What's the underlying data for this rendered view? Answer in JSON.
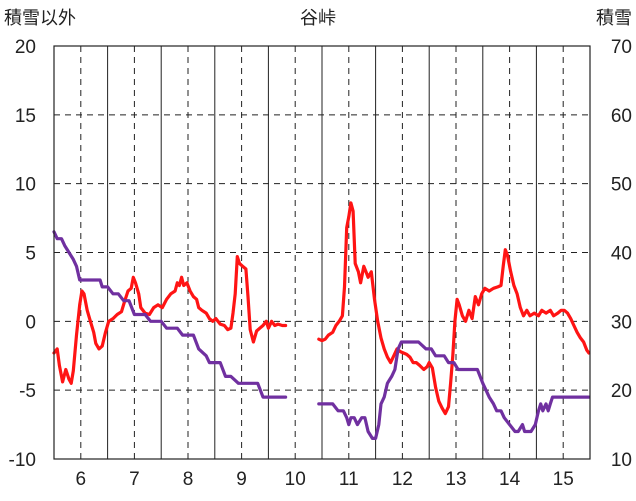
{
  "chart_data": {
    "type": "line",
    "title": "谷峠",
    "ylabel_left": "積雪以外",
    "ylabel_right": "積雪",
    "ylim_left": [
      -10,
      20
    ],
    "ylim_right": [
      10,
      70
    ],
    "yticks_left": [
      "20",
      "15",
      "10",
      "5",
      "0",
      "-5",
      "-10"
    ],
    "yticks_right": [
      "70",
      "60",
      "50",
      "40",
      "30",
      "20",
      "10"
    ],
    "xlim": [
      5.5,
      15.5
    ],
    "xticks": [
      "6",
      "7",
      "8",
      "9",
      "10",
      "11",
      "12",
      "13",
      "14",
      "15"
    ],
    "grid": true,
    "colors": {
      "series_left": "#ff1414",
      "series_right": "#7030a0",
      "grid": "#222222"
    },
    "series": [
      {
        "axis": "left",
        "segments": [
          [
            [
              5.5,
              -2.3
            ],
            [
              5.56,
              -2.0
            ],
            [
              5.6,
              -3.2
            ],
            [
              5.66,
              -4.4
            ],
            [
              5.72,
              -3.5
            ],
            [
              5.78,
              -4.2
            ],
            [
              5.82,
              -4.5
            ],
            [
              5.86,
              -3.6
            ],
            [
              5.92,
              -1.0
            ],
            [
              5.98,
              1.2
            ],
            [
              6.02,
              2.2
            ],
            [
              6.06,
              2.0
            ],
            [
              6.12,
              0.8
            ],
            [
              6.18,
              0.0
            ],
            [
              6.24,
              -0.8
            ],
            [
              6.28,
              -1.6
            ],
            [
              6.34,
              -2.0
            ],
            [
              6.4,
              -1.8
            ],
            [
              6.46,
              -0.8
            ],
            [
              6.52,
              0.0
            ],
            [
              6.6,
              0.2
            ],
            [
              6.68,
              0.5
            ],
            [
              6.76,
              0.7
            ],
            [
              6.82,
              1.5
            ],
            [
              6.88,
              2.2
            ],
            [
              6.94,
              2.4
            ],
            [
              6.98,
              3.2
            ],
            [
              7.02,
              2.8
            ],
            [
              7.08,
              2.0
            ],
            [
              7.12,
              1.0
            ],
            [
              7.2,
              0.6
            ],
            [
              7.28,
              0.5
            ],
            [
              7.36,
              1.0
            ],
            [
              7.44,
              1.2
            ],
            [
              7.52,
              1.0
            ],
            [
              7.6,
              1.6
            ],
            [
              7.68,
              2.0
            ],
            [
              7.76,
              2.2
            ],
            [
              7.8,
              2.8
            ],
            [
              7.84,
              2.6
            ],
            [
              7.88,
              3.2
            ],
            [
              7.92,
              2.6
            ],
            [
              7.98,
              2.8
            ],
            [
              8.04,
              2.2
            ],
            [
              8.1,
              1.8
            ],
            [
              8.16,
              1.6
            ],
            [
              8.2,
              1.0
            ],
            [
              8.26,
              0.8
            ],
            [
              8.34,
              0.6
            ],
            [
              8.4,
              0.2
            ],
            [
              8.46,
              0.0
            ],
            [
              8.52,
              0.2
            ],
            [
              8.6,
              -0.2
            ],
            [
              8.68,
              -0.3
            ],
            [
              8.74,
              -0.6
            ],
            [
              8.8,
              -0.5
            ],
            [
              8.84,
              0.6
            ],
            [
              8.88,
              2.0
            ],
            [
              8.92,
              4.7
            ],
            [
              8.96,
              4.2
            ],
            [
              9.02,
              4.0
            ],
            [
              9.08,
              3.8
            ],
            [
              9.12,
              1.8
            ],
            [
              9.16,
              -0.6
            ],
            [
              9.22,
              -1.5
            ],
            [
              9.28,
              -0.7
            ],
            [
              9.34,
              -0.5
            ],
            [
              9.4,
              -0.3
            ],
            [
              9.46,
              0.0
            ],
            [
              9.5,
              -0.5
            ],
            [
              9.56,
              0.0
            ],
            [
              9.62,
              -0.3
            ],
            [
              9.68,
              -0.2
            ],
            [
              9.76,
              -0.3
            ],
            [
              9.82,
              -0.3
            ]
          ],
          [
            [
              10.44,
              -1.3
            ],
            [
              10.5,
              -1.4
            ],
            [
              10.56,
              -1.3
            ],
            [
              10.62,
              -1.0
            ],
            [
              10.7,
              -0.8
            ],
            [
              10.76,
              -0.3
            ],
            [
              10.82,
              0.0
            ],
            [
              10.88,
              0.4
            ],
            [
              10.92,
              2.5
            ],
            [
              10.96,
              6.8
            ],
            [
              11.0,
              7.6
            ],
            [
              11.04,
              8.6
            ],
            [
              11.08,
              8.0
            ],
            [
              11.12,
              4.2
            ],
            [
              11.18,
              3.6
            ],
            [
              11.22,
              2.8
            ],
            [
              11.28,
              4.0
            ],
            [
              11.32,
              3.6
            ],
            [
              11.36,
              3.2
            ],
            [
              11.42,
              3.6
            ],
            [
              11.48,
              1.6
            ],
            [
              11.54,
              0.0
            ],
            [
              11.6,
              -1.2
            ],
            [
              11.66,
              -2.0
            ],
            [
              11.72,
              -2.6
            ],
            [
              11.78,
              -3.0
            ],
            [
              11.84,
              -2.5
            ],
            [
              11.9,
              -2.0
            ],
            [
              11.96,
              -2.2
            ],
            [
              12.02,
              -2.3
            ],
            [
              12.08,
              -2.4
            ],
            [
              12.14,
              -2.6
            ],
            [
              12.2,
              -3.0
            ],
            [
              12.26,
              -3.0
            ],
            [
              12.32,
              -3.2
            ],
            [
              12.4,
              -3.5
            ],
            [
              12.46,
              -3.3
            ],
            [
              12.5,
              -3.0
            ],
            [
              12.56,
              -3.4
            ],
            [
              12.62,
              -4.8
            ],
            [
              12.68,
              -5.8
            ],
            [
              12.74,
              -6.3
            ],
            [
              12.8,
              -6.7
            ],
            [
              12.86,
              -6.2
            ],
            [
              12.9,
              -4.5
            ],
            [
              12.94,
              -2.5
            ],
            [
              12.98,
              0.0
            ],
            [
              13.02,
              1.6
            ],
            [
              13.06,
              1.2
            ],
            [
              13.12,
              0.4
            ],
            [
              13.18,
              0.0
            ],
            [
              13.24,
              0.8
            ],
            [
              13.3,
              0.2
            ],
            [
              13.36,
              1.8
            ],
            [
              13.42,
              1.2
            ],
            [
              13.48,
              2.0
            ],
            [
              13.54,
              2.4
            ],
            [
              13.62,
              2.2
            ],
            [
              13.7,
              2.4
            ],
            [
              13.78,
              2.5
            ],
            [
              13.84,
              2.6
            ],
            [
              13.88,
              4.0
            ],
            [
              13.92,
              5.2
            ],
            [
              13.96,
              4.8
            ],
            [
              14.02,
              3.6
            ],
            [
              14.08,
              2.6
            ],
            [
              14.14,
              2.0
            ],
            [
              14.2,
              1.0
            ],
            [
              14.26,
              0.4
            ],
            [
              14.32,
              0.8
            ],
            [
              14.38,
              0.4
            ],
            [
              14.46,
              0.6
            ],
            [
              14.54,
              0.4
            ],
            [
              14.6,
              0.8
            ],
            [
              14.68,
              0.6
            ],
            [
              14.76,
              0.8
            ],
            [
              14.82,
              0.4
            ],
            [
              14.9,
              0.6
            ],
            [
              14.96,
              0.8
            ],
            [
              15.02,
              0.8
            ],
            [
              15.08,
              0.6
            ],
            [
              15.14,
              0.2
            ],
            [
              15.2,
              -0.3
            ],
            [
              15.26,
              -0.8
            ],
            [
              15.32,
              -1.2
            ],
            [
              15.38,
              -1.5
            ],
            [
              15.44,
              -2.1
            ],
            [
              15.48,
              -2.3
            ]
          ]
        ]
      },
      {
        "axis": "right",
        "segments": [
          [
            [
              5.5,
              43
            ],
            [
              5.56,
              42
            ],
            [
              5.64,
              42
            ],
            [
              5.7,
              41
            ],
            [
              5.78,
              40
            ],
            [
              5.86,
              39
            ],
            [
              5.92,
              38
            ],
            [
              5.98,
              36
            ],
            [
              6.04,
              36
            ],
            [
              6.2,
              36
            ],
            [
              6.36,
              36
            ],
            [
              6.4,
              35
            ],
            [
              6.5,
              35
            ],
            [
              6.6,
              34
            ],
            [
              6.7,
              34
            ],
            [
              6.8,
              33
            ],
            [
              6.9,
              33
            ],
            [
              7.0,
              31
            ],
            [
              7.2,
              31
            ],
            [
              7.3,
              30
            ],
            [
              7.5,
              30
            ],
            [
              7.6,
              29
            ],
            [
              7.8,
              29
            ],
            [
              7.9,
              28
            ],
            [
              8.1,
              28
            ],
            [
              8.2,
              26
            ],
            [
              8.34,
              25
            ],
            [
              8.4,
              24
            ],
            [
              8.6,
              24
            ],
            [
              8.7,
              22
            ],
            [
              8.8,
              22
            ],
            [
              8.94,
              21
            ],
            [
              9.2,
              21
            ],
            [
              9.3,
              21
            ],
            [
              9.4,
              19
            ],
            [
              9.6,
              19
            ],
            [
              9.82,
              19
            ]
          ],
          [
            [
              10.44,
              18
            ],
            [
              10.7,
              18
            ],
            [
              10.8,
              17
            ],
            [
              10.9,
              17
            ],
            [
              10.96,
              16
            ],
            [
              11.0,
              15
            ],
            [
              11.04,
              16
            ],
            [
              11.1,
              16
            ],
            [
              11.16,
              15
            ],
            [
              11.24,
              16
            ],
            [
              11.3,
              16
            ],
            [
              11.36,
              14
            ],
            [
              11.44,
              13
            ],
            [
              11.5,
              13
            ],
            [
              11.56,
              15
            ],
            [
              11.6,
              18
            ],
            [
              11.66,
              19
            ],
            [
              11.72,
              21
            ],
            [
              11.8,
              22
            ],
            [
              11.86,
              23
            ],
            [
              11.92,
              26
            ],
            [
              11.98,
              27
            ],
            [
              12.3,
              27
            ],
            [
              12.44,
              26
            ],
            [
              12.54,
              26
            ],
            [
              12.62,
              25
            ],
            [
              12.78,
              25
            ],
            [
              12.86,
              24
            ],
            [
              12.96,
              24
            ],
            [
              13.04,
              23
            ],
            [
              13.4,
              23
            ],
            [
              13.5,
              21
            ],
            [
              13.56,
              20
            ],
            [
              13.62,
              19
            ],
            [
              13.7,
              18
            ],
            [
              13.76,
              17
            ],
            [
              13.84,
              17
            ],
            [
              13.9,
              16
            ],
            [
              14.0,
              15
            ],
            [
              14.1,
              14
            ],
            [
              14.16,
              14
            ],
            [
              14.24,
              15
            ],
            [
              14.28,
              14
            ],
            [
              14.4,
              14
            ],
            [
              14.48,
              15
            ],
            [
              14.54,
              17
            ],
            [
              14.58,
              18
            ],
            [
              14.62,
              17
            ],
            [
              14.68,
              18
            ],
            [
              14.72,
              17
            ],
            [
              14.76,
              18
            ],
            [
              14.8,
              19
            ],
            [
              14.9,
              19
            ],
            [
              15.2,
              19
            ],
            [
              15.48,
              19
            ]
          ]
        ]
      }
    ]
  }
}
